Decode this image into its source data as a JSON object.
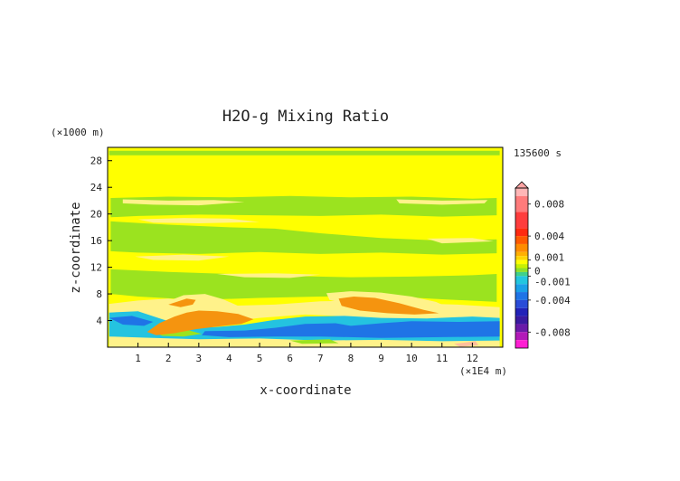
{
  "chart_data": {
    "type": "heatmap",
    "title": "H2O-g Mixing Ratio",
    "xlabel": "x-coordinate",
    "ylabel": "z-coordinate",
    "x_unit": "(×1E4 m)",
    "y_unit": "(×1000 m)",
    "time_label": "135600 s",
    "xlim": [
      0,
      13
    ],
    "ylim": [
      0,
      30
    ],
    "x_ticks": [
      "1",
      "2",
      "3",
      "4",
      "5",
      "6",
      "7",
      "8",
      "9",
      "10",
      "11",
      "12"
    ],
    "y_ticks": [
      "4",
      "8",
      "12",
      "16",
      "20",
      "24",
      "28"
    ],
    "colorbar": {
      "range": [
        -0.01,
        0.01
      ],
      "labels": [
        {
          "value": 0.008,
          "text": "0.008"
        },
        {
          "value": 0.004,
          "text": "0.004"
        },
        {
          "value": 0.001,
          "text": "0.001"
        },
        {
          "value": 0,
          "text": "0"
        },
        {
          "value": -0.001,
          "text": "-0.001"
        },
        {
          "value": -0.004,
          "text": "-0.004"
        },
        {
          "value": -0.008,
          "text": "-0.008"
        }
      ]
    },
    "colors": {
      "background_field": "#ffff00",
      "green": "#9be31f",
      "orange": "#f5940f",
      "red_orange": "#ef7a1a",
      "cyan": "#24c3e0",
      "blue": "#1f74e6",
      "light_yellow": "#fff28a",
      "salmon": "#ffbe9c",
      "pink_top": "#ffa4a4"
    },
    "regions": [
      {
        "category": "green",
        "points": [
          [
            0.05,
            29.5
          ],
          [
            12.9,
            29.5
          ],
          [
            12.9,
            28.8
          ],
          [
            0.05,
            28.8
          ]
        ]
      },
      {
        "category": "green",
        "points": [
          [
            0.1,
            22.4
          ],
          [
            2.0,
            22.6
          ],
          [
            4.0,
            22.5
          ],
          [
            6.0,
            22.7
          ],
          [
            8.0,
            22.5
          ],
          [
            10.0,
            22.6
          ],
          [
            12.0,
            22.3
          ],
          [
            12.8,
            22.4
          ],
          [
            12.8,
            19.8
          ],
          [
            11.0,
            19.6
          ],
          [
            9.0,
            19.9
          ],
          [
            7.0,
            19.7
          ],
          [
            5.0,
            19.8
          ],
          [
            3.0,
            19.9
          ],
          [
            1.0,
            19.7
          ],
          [
            0.1,
            19.5
          ]
        ]
      },
      {
        "category": "green",
        "points": [
          [
            0.1,
            18.9
          ],
          [
            2.0,
            18.4
          ],
          [
            4.0,
            18.0
          ],
          [
            5.5,
            17.8
          ],
          [
            7.0,
            17.1
          ],
          [
            9.0,
            16.4
          ],
          [
            11.0,
            16.0
          ],
          [
            12.8,
            16.2
          ],
          [
            12.8,
            14.1
          ],
          [
            11.0,
            13.9
          ],
          [
            9.0,
            14.2
          ],
          [
            7.0,
            14.0
          ],
          [
            5.0,
            14.3
          ],
          [
            3.0,
            14.0
          ],
          [
            1.0,
            14.2
          ],
          [
            0.1,
            14.4
          ]
        ]
      },
      {
        "category": "green",
        "points": [
          [
            0.1,
            11.7
          ],
          [
            2.0,
            11.3
          ],
          [
            4.0,
            11.0
          ],
          [
            6.0,
            10.7
          ],
          [
            8.0,
            10.5
          ],
          [
            10.0,
            10.6
          ],
          [
            12.0,
            10.8
          ],
          [
            12.8,
            11.0
          ],
          [
            12.8,
            6.8
          ],
          [
            11.0,
            7.2
          ],
          [
            9.0,
            7.7
          ],
          [
            7.0,
            7.6
          ],
          [
            5.0,
            7.4
          ],
          [
            3.0,
            7.1
          ],
          [
            1.0,
            7.6
          ],
          [
            0.1,
            8.0
          ]
        ]
      },
      {
        "category": "light_yellow",
        "points": [
          [
            0.5,
            22.2
          ],
          [
            2.0,
            22.0
          ],
          [
            3.5,
            22.1
          ],
          [
            4.5,
            21.8
          ],
          [
            3.0,
            21.3
          ],
          [
            1.5,
            21.4
          ],
          [
            0.5,
            21.6
          ]
        ]
      },
      {
        "category": "light_yellow",
        "points": [
          [
            9.5,
            22.2
          ],
          [
            11.0,
            22.0
          ],
          [
            12.5,
            22.1
          ],
          [
            12.4,
            21.6
          ],
          [
            11.0,
            21.4
          ],
          [
            9.6,
            21.6
          ]
        ]
      },
      {
        "category": "light_yellow",
        "points": [
          [
            1.0,
            19.2
          ],
          [
            2.5,
            19.4
          ],
          [
            4.0,
            19.3
          ],
          [
            5.0,
            18.8
          ],
          [
            3.0,
            18.6
          ],
          [
            1.5,
            18.7
          ]
        ]
      },
      {
        "category": "light_yellow",
        "points": [
          [
            10.5,
            16.3
          ],
          [
            12.0,
            16.4
          ],
          [
            12.7,
            15.9
          ],
          [
            11.0,
            15.6
          ]
        ]
      },
      {
        "category": "light_yellow",
        "points": [
          [
            0.9,
            13.6
          ],
          [
            2.5,
            13.9
          ],
          [
            4.0,
            13.6
          ],
          [
            3.0,
            13.0
          ],
          [
            1.5,
            13.1
          ]
        ]
      },
      {
        "category": "light_yellow",
        "points": [
          [
            3.6,
            11.0
          ],
          [
            5.5,
            11.1
          ],
          [
            7.0,
            10.9
          ],
          [
            6.0,
            10.4
          ],
          [
            4.5,
            10.5
          ]
        ]
      },
      {
        "category": "light_yellow",
        "points": [
          [
            0.05,
            6.5
          ],
          [
            1.0,
            7.0
          ],
          [
            2.0,
            7.3
          ],
          [
            3.0,
            6.8
          ],
          [
            4.0,
            6.2
          ],
          [
            5.5,
            6.4
          ],
          [
            7.0,
            6.9
          ],
          [
            8.5,
            7.0
          ],
          [
            10.0,
            6.6
          ],
          [
            11.5,
            6.4
          ],
          [
            12.9,
            6.0
          ],
          [
            12.9,
            3.8
          ],
          [
            11.0,
            4.0
          ],
          [
            9.5,
            4.2
          ],
          [
            8.0,
            4.6
          ],
          [
            6.5,
            4.9
          ],
          [
            5.0,
            4.4
          ],
          [
            3.5,
            3.6
          ],
          [
            2.0,
            2.6
          ],
          [
            0.5,
            2.4
          ],
          [
            0.05,
            2.8
          ]
        ]
      },
      {
        "category": "light_yellow",
        "points": [
          [
            7.2,
            8.1
          ],
          [
            8.0,
            8.4
          ],
          [
            9.0,
            8.2
          ],
          [
            10.0,
            7.6
          ],
          [
            10.8,
            6.8
          ],
          [
            11.2,
            6.0
          ],
          [
            10.2,
            5.6
          ],
          [
            9.0,
            5.9
          ],
          [
            8.0,
            6.4
          ],
          [
            7.3,
            7.1
          ]
        ]
      },
      {
        "category": "light_yellow",
        "points": [
          [
            1.6,
            6.2
          ],
          [
            2.5,
            7.8
          ],
          [
            3.2,
            8.0
          ],
          [
            3.8,
            7.2
          ],
          [
            4.6,
            5.6
          ],
          [
            5.0,
            4.6
          ],
          [
            4.0,
            3.5
          ],
          [
            3.0,
            3.0
          ],
          [
            2.2,
            3.8
          ],
          [
            1.8,
            5.0
          ]
        ]
      },
      {
        "category": "cyan",
        "points": [
          [
            0.05,
            5.2
          ],
          [
            1.0,
            5.4
          ],
          [
            1.8,
            4.2
          ],
          [
            2.5,
            3.2
          ],
          [
            3.5,
            3.0
          ],
          [
            4.5,
            3.4
          ],
          [
            5.5,
            4.1
          ],
          [
            6.5,
            4.6
          ],
          [
            7.8,
            4.7
          ],
          [
            9.0,
            4.4
          ],
          [
            10.5,
            4.3
          ],
          [
            12.0,
            4.6
          ],
          [
            12.9,
            4.4
          ],
          [
            12.9,
            0.5
          ],
          [
            9.0,
            0.5
          ],
          [
            5.0,
            0.5
          ],
          [
            1.0,
            0.5
          ],
          [
            0.05,
            0.5
          ]
        ]
      },
      {
        "category": "blue",
        "points": [
          [
            0.05,
            4.4
          ],
          [
            0.8,
            4.7
          ],
          [
            1.5,
            3.8
          ],
          [
            1.2,
            3.2
          ],
          [
            0.5,
            3.4
          ]
        ]
      },
      {
        "category": "blue",
        "points": [
          [
            3.2,
            2.4
          ],
          [
            4.5,
            2.5
          ],
          [
            5.5,
            2.9
          ],
          [
            6.5,
            3.5
          ],
          [
            7.5,
            3.6
          ],
          [
            8.0,
            3.2
          ],
          [
            9.0,
            3.6
          ],
          [
            10.0,
            3.9
          ],
          [
            11.5,
            3.8
          ],
          [
            12.9,
            3.9
          ],
          [
            12.9,
            1.6
          ],
          [
            11.0,
            1.5
          ],
          [
            9.0,
            1.4
          ],
          [
            7.0,
            1.6
          ],
          [
            5.5,
            1.6
          ],
          [
            4.0,
            1.5
          ],
          [
            3.1,
            1.8
          ]
        ]
      },
      {
        "category": "light_yellow",
        "points": [
          [
            0.05,
            1.6
          ],
          [
            1.5,
            1.4
          ],
          [
            3.0,
            1.2
          ],
          [
            5.0,
            1.3
          ],
          [
            7.0,
            1.0
          ],
          [
            9.0,
            1.1
          ],
          [
            11.0,
            0.9
          ],
          [
            12.9,
            1.0
          ],
          [
            12.9,
            0.05
          ],
          [
            0.05,
            0.05
          ]
        ]
      },
      {
        "category": "green",
        "points": [
          [
            1.6,
            2.1
          ],
          [
            2.6,
            2.6
          ],
          [
            3.1,
            2.0
          ],
          [
            2.5,
            1.6
          ],
          [
            1.8,
            1.7
          ]
        ]
      },
      {
        "category": "green",
        "points": [
          [
            6.0,
            1.0
          ],
          [
            7.3,
            1.2
          ],
          [
            7.6,
            0.6
          ],
          [
            6.4,
            0.5
          ]
        ]
      },
      {
        "category": "orange",
        "points": [
          [
            1.3,
            2.3
          ],
          [
            1.7,
            3.6
          ],
          [
            2.2,
            4.6
          ],
          [
            2.6,
            5.2
          ],
          [
            3.0,
            5.5
          ],
          [
            3.6,
            5.4
          ],
          [
            4.3,
            5.0
          ],
          [
            4.8,
            4.2
          ],
          [
            4.4,
            3.5
          ],
          [
            3.6,
            3.1
          ],
          [
            2.9,
            2.7
          ],
          [
            2.2,
            2.1
          ],
          [
            1.6,
            1.8
          ]
        ]
      },
      {
        "category": "orange",
        "points": [
          [
            2.0,
            6.4
          ],
          [
            2.6,
            7.3
          ],
          [
            2.9,
            7.1
          ],
          [
            2.8,
            6.4
          ],
          [
            2.4,
            6.0
          ]
        ]
      },
      {
        "category": "orange",
        "points": [
          [
            7.6,
            7.3
          ],
          [
            8.1,
            7.6
          ],
          [
            8.8,
            7.4
          ],
          [
            9.6,
            6.6
          ],
          [
            10.4,
            5.6
          ],
          [
            10.9,
            5.1
          ],
          [
            10.1,
            4.9
          ],
          [
            9.2,
            5.1
          ],
          [
            8.3,
            5.5
          ],
          [
            7.7,
            6.2
          ]
        ]
      },
      {
        "category": "salmon",
        "points": [
          [
            11.4,
            0.5
          ],
          [
            12.1,
            0.9
          ],
          [
            12.2,
            0.3
          ],
          [
            11.6,
            0.05
          ]
        ]
      }
    ],
    "grid": false,
    "legend": "colorbar at right"
  }
}
